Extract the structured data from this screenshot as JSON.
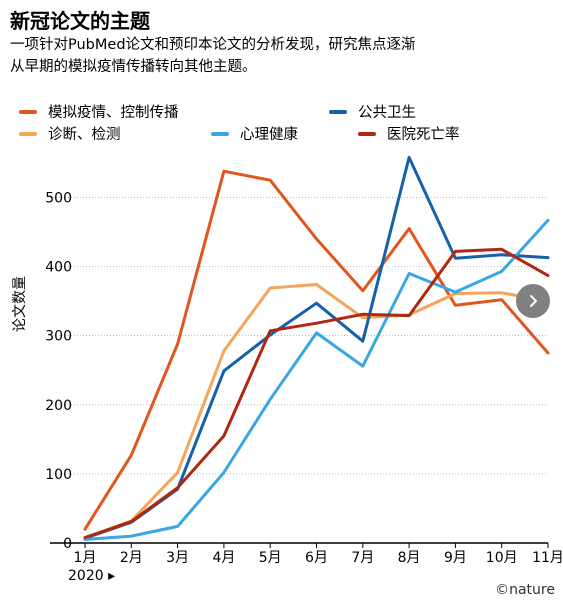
{
  "header": {
    "title": "新冠论文的主题",
    "subtitle_line1": "一项针对PubMed论文和预印本论文的分析发现，研究焦点逐渐",
    "subtitle_line2": "从早期的模拟疫情传播转向其他主题。"
  },
  "controls": {
    "next_icon": "chevron-right-icon"
  },
  "footer": {
    "year_label": "2020 ▸",
    "watermark": "©nature"
  },
  "chart_data": {
    "type": "line",
    "ylabel": "论文数量",
    "xlabel": "",
    "ylim": [
      0,
      560
    ],
    "yticks": [
      0,
      100,
      200,
      300,
      400,
      500
    ],
    "grid": true,
    "legend_placement": "top",
    "categories": [
      "1月",
      "2月",
      "3月",
      "4月",
      "5月",
      "6月",
      "7月",
      "8月",
      "9月",
      "10月",
      "11月"
    ],
    "series": [
      {
        "name": "模拟疫情、控制传播",
        "color": "#e0561e",
        "values": [
          20,
          127,
          288,
          538,
          525,
          440,
          365,
          455,
          344,
          352,
          275
        ]
      },
      {
        "name": "诊断、检测",
        "color": "#f4a55b",
        "values": [
          7,
          32,
          102,
          278,
          369,
          374,
          326,
          330,
          361,
          362,
          350
        ]
      },
      {
        "name": "公共卫生",
        "color": "#1560aa",
        "values": [
          7,
          30,
          78,
          249,
          301,
          347,
          292,
          558,
          412,
          417,
          413
        ]
      },
      {
        "name": "心理健康",
        "color": "#3aa6e2",
        "values": [
          5,
          10,
          24,
          102,
          208,
          304,
          256,
          390,
          363,
          393,
          467
        ]
      },
      {
        "name": "医院死亡率",
        "color": "#b0280f",
        "values": [
          8,
          31,
          80,
          155,
          307,
          318,
          331,
          329,
          422,
          425,
          387
        ]
      }
    ]
  }
}
